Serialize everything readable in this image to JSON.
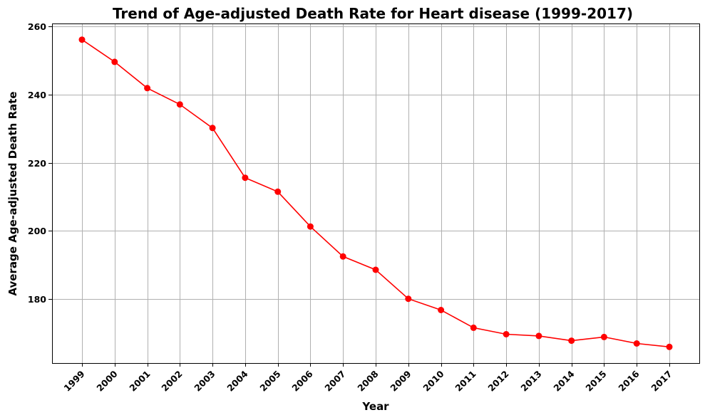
{
  "chart_data": {
    "type": "line",
    "title": "Trend of Age-adjusted Death Rate for Heart disease (1999-2017)",
    "xlabel": "Year",
    "ylabel": "Average Age-adjusted Death Rate",
    "x": [
      "1999",
      "2000",
      "2001",
      "2002",
      "2003",
      "2004",
      "2005",
      "2006",
      "2007",
      "2008",
      "2009",
      "2010",
      "2011",
      "2012",
      "2013",
      "2014",
      "2015",
      "2016",
      "2017"
    ],
    "series": [
      {
        "values": [
          256.1,
          249.6,
          241.9,
          237.1,
          230.2,
          215.6,
          211.5,
          201.3,
          192.5,
          188.6,
          180.1,
          176.8,
          171.6,
          169.7,
          169.2,
          167.8,
          168.9,
          167.0,
          166.0
        ],
        "color": "#ff0000",
        "marker": "circle"
      }
    ],
    "ylim": [
      161.25,
      260.85
    ],
    "yticks": [
      180,
      200,
      220,
      240,
      260
    ],
    "grid": true,
    "legend": "none"
  }
}
